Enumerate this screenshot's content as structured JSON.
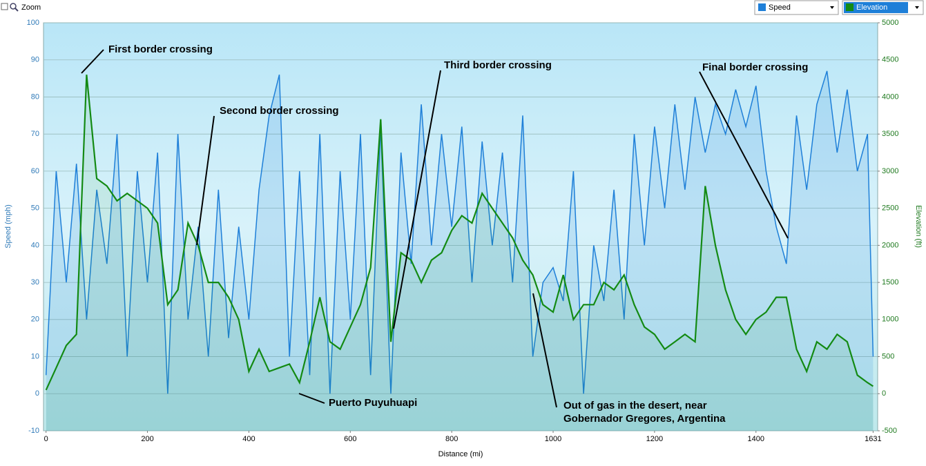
{
  "toolbar": {
    "zoom": "Zoom"
  },
  "chart_data": {
    "type": "line",
    "x": [
      0,
      20,
      40,
      60,
      80,
      100,
      120,
      140,
      160,
      180,
      200,
      220,
      240,
      260,
      280,
      300,
      320,
      340,
      360,
      380,
      400,
      420,
      440,
      460,
      480,
      500,
      520,
      540,
      560,
      580,
      600,
      620,
      640,
      660,
      680,
      700,
      720,
      740,
      760,
      780,
      800,
      820,
      840,
      860,
      880,
      900,
      920,
      940,
      960,
      980,
      1000,
      1020,
      1040,
      1060,
      1080,
      1100,
      1120,
      1140,
      1160,
      1180,
      1200,
      1220,
      1240,
      1260,
      1280,
      1300,
      1320,
      1340,
      1360,
      1380,
      1400,
      1420,
      1440,
      1460,
      1480,
      1500,
      1520,
      1540,
      1560,
      1580,
      1600,
      1620,
      1631
    ],
    "series": [
      {
        "name": "Speed",
        "color": "#1e7fd8",
        "axis": "y",
        "values": [
          5,
          60,
          30,
          62,
          20,
          55,
          35,
          70,
          10,
          60,
          30,
          65,
          0,
          70,
          20,
          45,
          10,
          55,
          15,
          45,
          20,
          55,
          75,
          86,
          10,
          60,
          5,
          70,
          0,
          60,
          20,
          70,
          5,
          72,
          0,
          65,
          35,
          78,
          40,
          70,
          45,
          72,
          30,
          68,
          40,
          65,
          30,
          75,
          10,
          30,
          34,
          25,
          60,
          0,
          40,
          25,
          55,
          20,
          70,
          40,
          72,
          50,
          78,
          55,
          80,
          65,
          78,
          70,
          82,
          72,
          83,
          60,
          45,
          35,
          75,
          55,
          78,
          87,
          65,
          82,
          60,
          70,
          10
        ]
      },
      {
        "name": "Elevation",
        "color": "#138a13",
        "axis": "y2",
        "values": [
          50,
          350,
          650,
          800,
          4300,
          2900,
          2800,
          2600,
          2700,
          2600,
          2500,
          2300,
          1200,
          1400,
          2300,
          2000,
          1500,
          1500,
          1300,
          1000,
          300,
          600,
          300,
          350,
          400,
          150,
          700,
          1300,
          700,
          600,
          900,
          1200,
          1700,
          3700,
          700,
          1900,
          1800,
          1500,
          1800,
          1900,
          2200,
          2400,
          2300,
          2700,
          2500,
          2300,
          2100,
          1800,
          1600,
          1200,
          1100,
          1600,
          1000,
          1200,
          1200,
          1500,
          1400,
          1600,
          1200,
          900,
          800,
          600,
          700,
          800,
          700,
          2800,
          2000,
          1400,
          1000,
          800,
          1000,
          1100,
          1300,
          1300,
          600,
          300,
          700,
          600,
          800,
          700,
          250,
          150,
          100
        ]
      }
    ],
    "xlim": [
      -5,
      1640
    ],
    "xticks": [
      0,
      200,
      400,
      600,
      800,
      1000,
      1200,
      1400,
      1631
    ],
    "ylim": [
      -10,
      100
    ],
    "yticks": [
      -10,
      0,
      10,
      20,
      30,
      40,
      50,
      60,
      70,
      80,
      90,
      100
    ],
    "y2lim": [
      -500,
      5000
    ],
    "y2ticks": [
      -500,
      0,
      500,
      1000,
      1500,
      2000,
      2500,
      3000,
      3500,
      4000,
      4500,
      5000
    ],
    "xlabel": "Distance  (mi)",
    "ylabel": "Speed (mph)",
    "y2label": "Elevation (ft)",
    "grid": true,
    "annotations": [
      {
        "text": "First border crossing"
      },
      {
        "text": "Second border crossing"
      },
      {
        "text": "Third border crossing"
      },
      {
        "text": "Final border crossing"
      },
      {
        "text": "Puerto Puyuhuapi"
      },
      {
        "text": [
          "Out of gas in the desert, near",
          "Gobernador Gregores, Argentina"
        ]
      }
    ]
  }
}
